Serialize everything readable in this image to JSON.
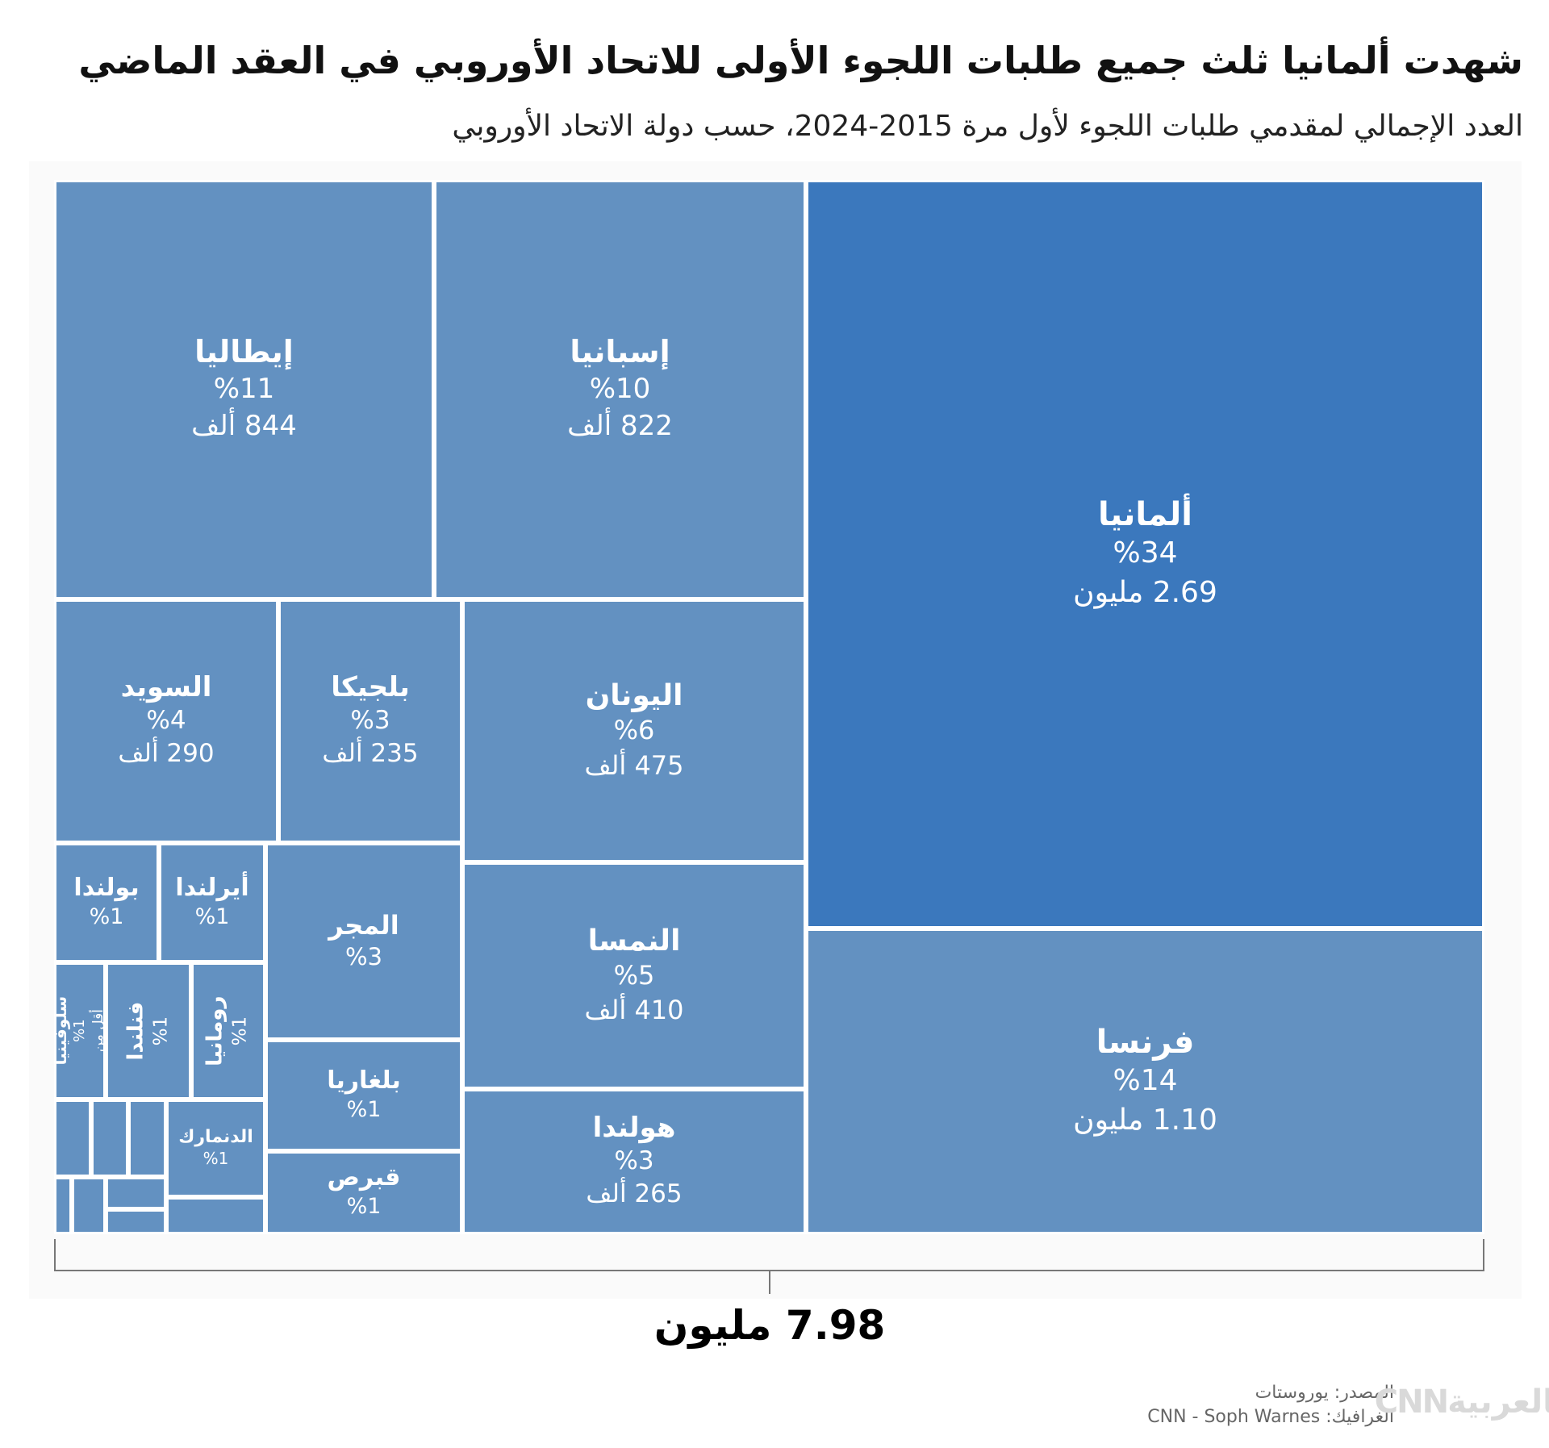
{
  "header": {
    "title": "شهدت ألمانيا ثلث جميع طلبات اللجوء الأولى للاتحاد الأوروبي في العقد الماضي",
    "subtitle": "العدد الإجمالي لمقدمي طلبات اللجوء لأول مرة 2015-2024، حسب دولة الاتحاد الأوروبي"
  },
  "colors": {
    "cell": "#6391c1",
    "highlight": "#3b78bd",
    "border": "#ffffff"
  },
  "chart_data": {
    "type": "treemap",
    "title": "شهدت ألمانيا ثلث جميع طلبات اللجوء الأولى للاتحاد الأوروبي في العقد الماضي",
    "subtitle": "العدد الإجمالي لمقدمي طلبات اللجوء لأول مرة 2015-2024، حسب دولة الاتحاد الأوروبي",
    "total_label": "7.98 مليون",
    "total_value": 7.98,
    "unit": "مليون",
    "items": [
      {
        "id": "germany",
        "name": "ألمانيا",
        "pct_label": "%34",
        "value_label": "2.69 مليون",
        "value": 2690000,
        "highlight": true
      },
      {
        "id": "france",
        "name": "فرنسا",
        "pct_label": "%14",
        "value_label": "1.10 مليون",
        "value": 1100000
      },
      {
        "id": "italy",
        "name": "إيطاليا",
        "pct_label": "%11",
        "value_label": "844 ألف",
        "value": 844000
      },
      {
        "id": "spain",
        "name": "إسبانيا",
        "pct_label": "%10",
        "value_label": "822 ألف",
        "value": 822000
      },
      {
        "id": "greece",
        "name": "اليونان",
        "pct_label": "%6",
        "value_label": "475 ألف",
        "value": 475000
      },
      {
        "id": "austria",
        "name": "النمسا",
        "pct_label": "%5",
        "value_label": "410 ألف",
        "value": 410000
      },
      {
        "id": "sweden",
        "name": "السويد",
        "pct_label": "%4",
        "value_label": "290 ألف",
        "value": 290000
      },
      {
        "id": "netherlands",
        "name": "هولندا",
        "pct_label": "%3",
        "value_label": "265 ألف",
        "value": 265000
      },
      {
        "id": "belgium",
        "name": "بلجيكا",
        "pct_label": "%3",
        "value_label": "235 ألف",
        "value": 235000
      },
      {
        "id": "hungary",
        "name": "المجر",
        "pct_label": "%3",
        "value_label": "",
        "value": null
      },
      {
        "id": "bulgaria",
        "name": "بلغاريا",
        "pct_label": "%1",
        "value_label": "",
        "value": null
      },
      {
        "id": "cyprus",
        "name": "قبرص",
        "pct_label": "%1",
        "value_label": "",
        "value": null
      },
      {
        "id": "ireland",
        "name": "أيرلندا",
        "pct_label": "%1",
        "value_label": "",
        "value": null
      },
      {
        "id": "poland",
        "name": "بولندا",
        "pct_label": "%1",
        "value_label": "",
        "value": null
      },
      {
        "id": "romania",
        "name": "رومانيا",
        "pct_label": "%1",
        "value_label": "",
        "value": null
      },
      {
        "id": "finland",
        "name": "فنلندا",
        "pct_label": "%1",
        "value_label": "",
        "value": null
      },
      {
        "id": "slovenia",
        "name": "سلوفينيا",
        "pct_label": "%1",
        "value_label": "",
        "value": null,
        "note": "أقل من"
      },
      {
        "id": "denmark",
        "name": "الدنمارك",
        "pct_label": "%1",
        "value_label": "",
        "value": null
      },
      {
        "id": "other-1",
        "name": "",
        "pct_label": "",
        "value_label": "",
        "value": null
      },
      {
        "id": "other-2",
        "name": "",
        "pct_label": "",
        "value_label": "",
        "value": null
      },
      {
        "id": "other-3",
        "name": "",
        "pct_label": "",
        "value_label": "",
        "value": null
      },
      {
        "id": "other-4",
        "name": "",
        "pct_label": "",
        "value_label": "",
        "value": null
      },
      {
        "id": "other-5",
        "name": "",
        "pct_label": "",
        "value_label": "",
        "value": null
      },
      {
        "id": "other-6",
        "name": "",
        "pct_label": "",
        "value_label": "",
        "value": null
      },
      {
        "id": "other-7",
        "name": "",
        "pct_label": "",
        "value_label": "",
        "value": null
      },
      {
        "id": "other-8",
        "name": "",
        "pct_label": "",
        "value_label": "",
        "value": null
      }
    ]
  },
  "footer": {
    "source": "المصدر: يوروستات",
    "credit": "الغرافيك: CNN - Soph Warnes",
    "logo": "بالعربيةCNN"
  }
}
